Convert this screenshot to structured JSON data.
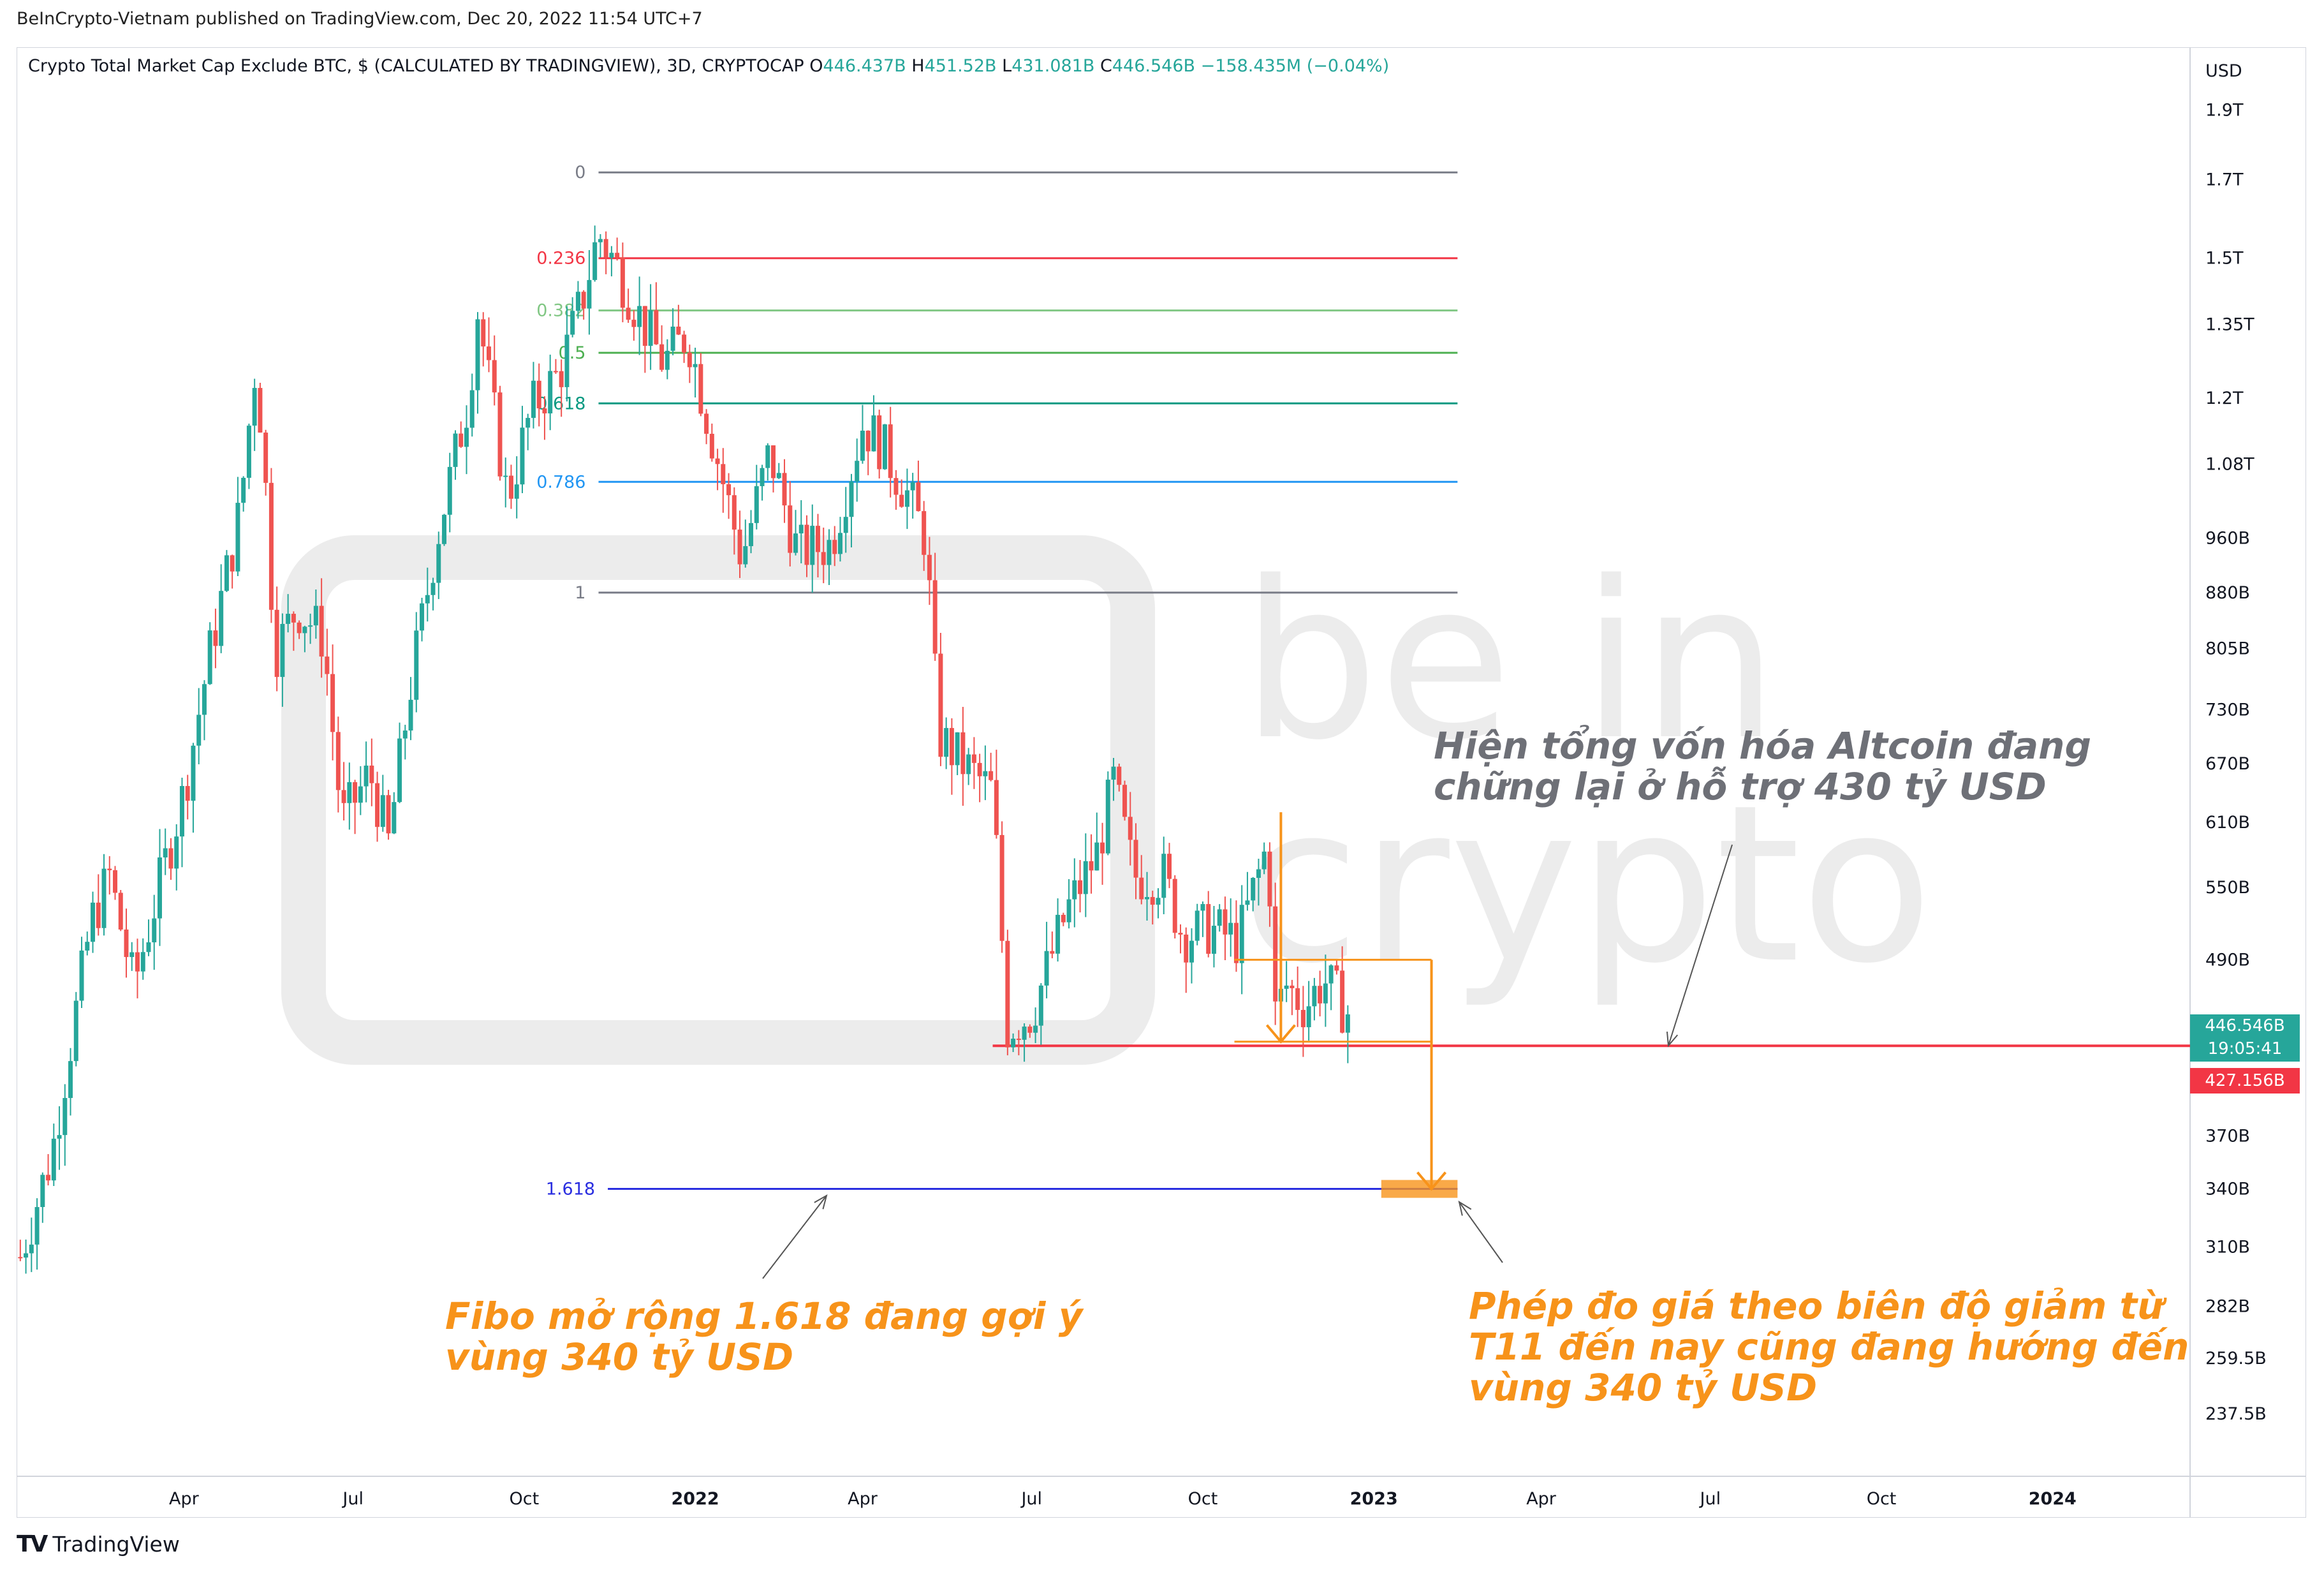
{
  "publisher_line": "BeInCrypto-Vietnam published on TradingView.com, Dec 20, 2022 11:54 UTC+7",
  "header": {
    "symbol": "Crypto Total Market Cap Exclude BTC, $ (CALCULATED BY TRADINGVIEW), 3D, CRYPTOCAP",
    "o_label": "O",
    "o_value": "446.437B",
    "h_label": "H",
    "h_value": "451.52B",
    "l_label": "L",
    "l_value": "431.081B",
    "c_label": "C",
    "c_value": "446.546B",
    "change": "−158.435M (−0.04%)"
  },
  "badges": {
    "current_price": "446.546B",
    "countdown": "19:05:41",
    "support_price": "427.156B"
  },
  "notes": {
    "support": "Hiện tổng vốn hóa Altcoin đang chững lại ở hỗ trợ 430 tỷ USD",
    "fibo": "Fibo mở rộng 1.618 đang gợi ý vùng 340 tỷ USD",
    "measure": "Phép đo giá theo biên độ giảm từ T11 đến nay cũng đang hướng đến vùng 340 tỷ USD"
  },
  "watermark": {
    "word1": "be in",
    "word2": "crypto"
  },
  "logo_text": "TradingView",
  "colors": {
    "up": "#26a69a",
    "down": "#ef5350",
    "fib_orange": "#f7931a",
    "support_red": "#f23645",
    "fib_blue": "#2a2ee0"
  },
  "chart_data": {
    "type": "candlestick",
    "title": "Crypto Total Market Cap Exclude BTC, $ (CALCULATED BY TRADINGVIEW), 3D, CRYPTOCAP",
    "y_scale": "log",
    "y_unit": "USD",
    "y_range": [
      215,
      2100
    ],
    "y_tick_labels": [
      "1.9T",
      "1.7T",
      "1.5T",
      "1.35T",
      "1.2T",
      "1.08T",
      "960B",
      "880B",
      "805B",
      "730B",
      "670B",
      "610B",
      "550B",
      "490B",
      "370B",
      "340B",
      "310B",
      "282B",
      "259.5B",
      "237.5B"
    ],
    "y_tick_values": [
      1900,
      1700,
      1500,
      1350,
      1200,
      1080,
      960,
      880,
      805,
      730,
      670,
      610,
      550,
      490,
      370,
      340,
      310,
      282,
      259.5,
      237.5
    ],
    "x_range": [
      "2021-01-01",
      "2024-03-15"
    ],
    "x_tick_labels": [
      "Apr",
      "Jul",
      "Oct",
      "2022",
      "Apr",
      "Jul",
      "Oct",
      "2023",
      "Apr",
      "Jul",
      "Oct",
      "2024"
    ],
    "x_tick_dates": [
      "2021-04-01",
      "2021-07-01",
      "2021-10-01",
      "2022-01-01",
      "2022-04-01",
      "2022-07-01",
      "2022-10-01",
      "2023-01-01",
      "2023-04-01",
      "2023-07-01",
      "2023-10-01",
      "2024-01-01"
    ],
    "x_tick_bold": [
      false,
      false,
      false,
      true,
      false,
      false,
      false,
      true,
      false,
      false,
      false,
      true
    ],
    "price_path": [
      [
        "2021-01-03",
        305
      ],
      [
        "2021-01-20",
        360
      ],
      [
        "2021-02-10",
        520
      ],
      [
        "2021-02-20",
        560
      ],
      [
        "2021-03-05",
        470
      ],
      [
        "2021-03-20",
        560
      ],
      [
        "2021-04-01",
        640
      ],
      [
        "2021-04-15",
        800
      ],
      [
        "2021-05-01",
        1000
      ],
      [
        "2021-05-09",
        1250
      ],
      [
        "2021-05-13",
        1150
      ],
      [
        "2021-05-20",
        800
      ],
      [
        "2021-06-01",
        860
      ],
      [
        "2021-06-15",
        820
      ],
      [
        "2021-06-25",
        610
      ],
      [
        "2021-07-10",
        660
      ],
      [
        "2021-07-20",
        590
      ],
      [
        "2021-08-01",
        760
      ],
      [
        "2021-08-15",
        960
      ],
      [
        "2021-09-01",
        1200
      ],
      [
        "2021-09-06",
        1380
      ],
      [
        "2021-09-22",
        1020
      ],
      [
        "2021-10-05",
        1180
      ],
      [
        "2021-10-20",
        1250
      ],
      [
        "2021-11-01",
        1400
      ],
      [
        "2021-11-10",
        1560
      ],
      [
        "2021-11-20",
        1480
      ],
      [
        "2021-12-03",
        1360
      ],
      [
        "2021-12-15",
        1270
      ],
      [
        "2021-12-28",
        1330
      ],
      [
        "2022-01-05",
        1200
      ],
      [
        "2022-01-20",
        1000
      ],
      [
        "2022-01-26",
        930
      ],
      [
        "2022-02-10",
        1100
      ],
      [
        "2022-02-25",
        940
      ],
      [
        "2022-03-15",
        950
      ],
      [
        "2022-04-01",
        1150
      ],
      [
        "2022-04-10",
        1120
      ],
      [
        "2022-04-25",
        1030
      ],
      [
        "2022-05-05",
        960
      ],
      [
        "2022-05-12",
        700
      ],
      [
        "2022-05-25",
        670
      ],
      [
        "2022-06-10",
        640
      ],
      [
        "2022-06-18",
        440
      ],
      [
        "2022-07-01",
        450
      ],
      [
        "2022-07-20",
        530
      ],
      [
        "2022-08-05",
        580
      ],
      [
        "2022-08-14",
        650
      ],
      [
        "2022-08-25",
        560
      ],
      [
        "2022-09-10",
        560
      ],
      [
        "2022-09-20",
        510
      ],
      [
        "2022-10-05",
        515
      ],
      [
        "2022-10-20",
        505
      ],
      [
        "2022-11-05",
        590
      ],
      [
        "2022-11-09",
        450
      ],
      [
        "2022-11-15",
        470
      ],
      [
        "2022-11-25",
        455
      ],
      [
        "2022-12-05",
        475
      ],
      [
        "2022-12-13",
        460
      ],
      [
        "2022-12-20",
        446.5
      ]
    ],
    "fib_levels": [
      {
        "ratio": "0",
        "value": 1720,
        "color": "#787b86"
      },
      {
        "ratio": "0.236",
        "value": 1500,
        "color": "#f23645"
      },
      {
        "ratio": "0.382",
        "value": 1380,
        "color": "#81c784"
      },
      {
        "ratio": "0.5",
        "value": 1290,
        "color": "#4caf50"
      },
      {
        "ratio": "0.618",
        "value": 1190,
        "color": "#089981"
      },
      {
        "ratio": "0.786",
        "value": 1050,
        "color": "#2196f3"
      },
      {
        "ratio": "1",
        "value": 880,
        "color": "#787b86"
      },
      {
        "ratio": "1.618",
        "value": 340,
        "color": "#2a2ee0"
      }
    ],
    "fib_start": "2021-11-10",
    "fib_end": "2023-02-15",
    "support_level": 427.156,
    "measured_move": {
      "drop_from": 620,
      "drop_to": 430,
      "box_top": 490,
      "box_bottom": 430,
      "target": 340,
      "start": "2022-11-05",
      "end": "2023-02-15"
    }
  }
}
